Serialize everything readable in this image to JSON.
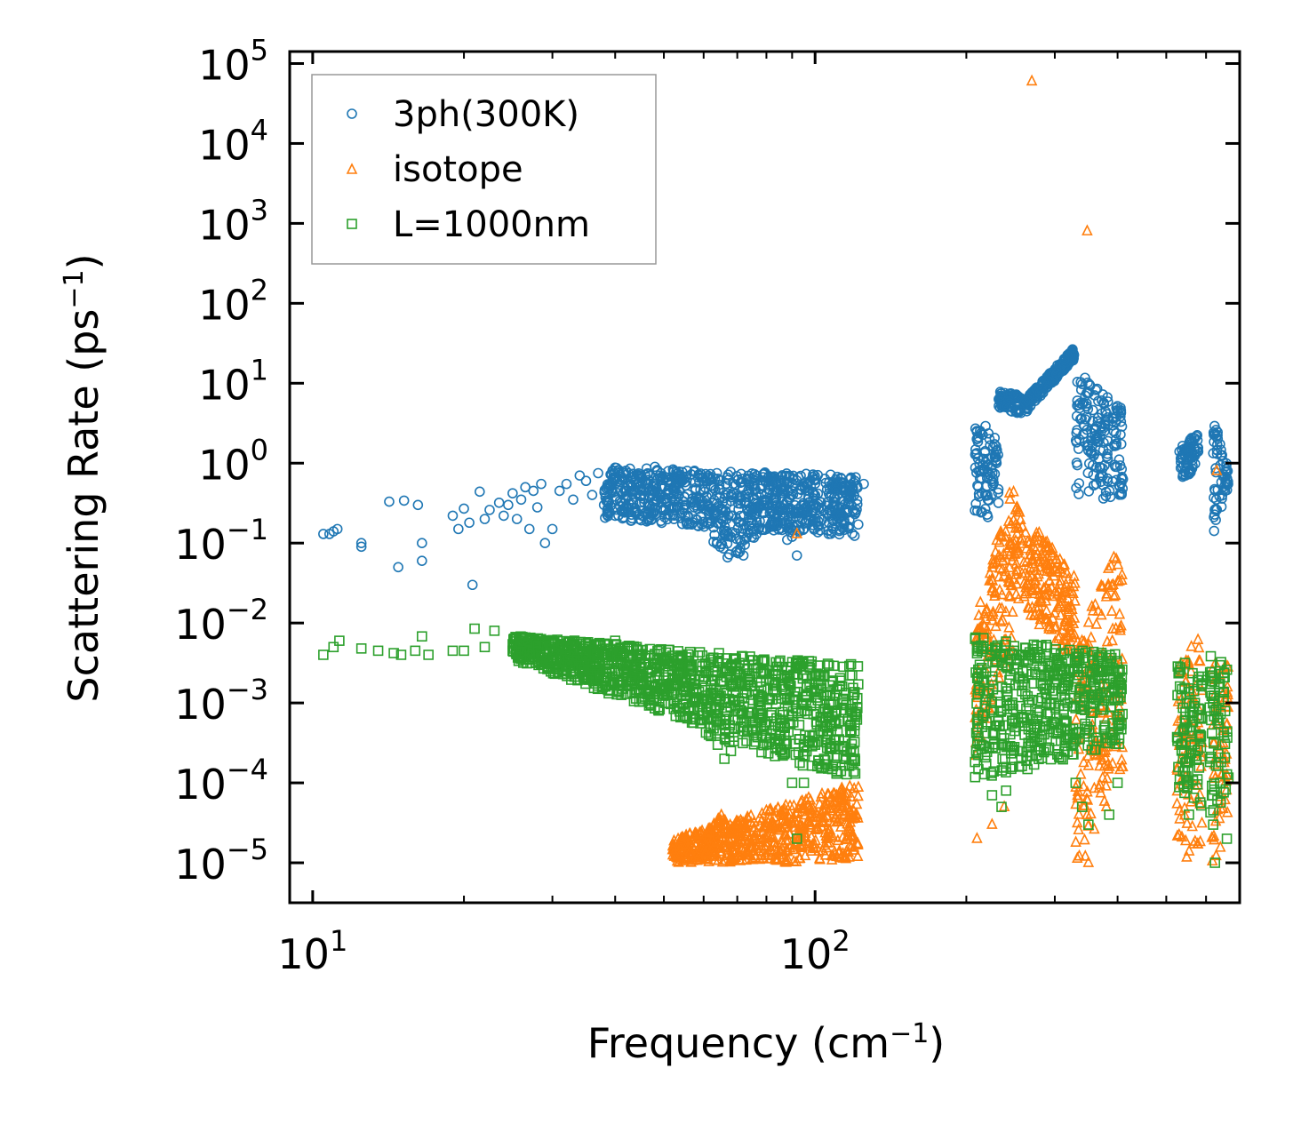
{
  "chart_data": {
    "type": "scatter",
    "xlabel": "Frequency (cm",
    "xlabel_sup": "−1",
    "xlabel_end": ")",
    "ylabel": "Scattering Rate (ps",
    "ylabel_sup": "−1",
    "ylabel_end": ")",
    "xscale": "log",
    "yscale": "log",
    "xlim": [
      9.0,
      700.0
    ],
    "ylim_exponents": [
      -5.5,
      5.15
    ],
    "x_ticks": [
      {
        "value": 10,
        "base": "10",
        "exp": "1"
      },
      {
        "value": 100,
        "base": "10",
        "exp": "2"
      }
    ],
    "y_ticks": [
      {
        "exp_value": 5,
        "base": "10",
        "exp": "5"
      },
      {
        "exp_value": 4,
        "base": "10",
        "exp": "4"
      },
      {
        "exp_value": 3,
        "base": "10",
        "exp": "3"
      },
      {
        "exp_value": 2,
        "base": "10",
        "exp": "2"
      },
      {
        "exp_value": 1,
        "base": "10",
        "exp": "1"
      },
      {
        "exp_value": 0,
        "base": "10",
        "exp": "0"
      },
      {
        "exp_value": -1,
        "base": "10",
        "exp": "−1"
      },
      {
        "exp_value": -2,
        "base": "10",
        "exp": "−2"
      },
      {
        "exp_value": -3,
        "base": "10",
        "exp": "−3"
      },
      {
        "exp_value": -4,
        "base": "10",
        "exp": "−4"
      },
      {
        "exp_value": -5,
        "base": "10",
        "exp": "−5"
      }
    ],
    "legend_placement": "top-left",
    "series": [
      {
        "name": "3ph(300K)",
        "marker": "circle",
        "color": "#1f77b4",
        "points": [
          [
            10.5,
            0.13
          ],
          [
            10.8,
            0.13
          ],
          [
            11,
            0.14
          ],
          [
            11.2,
            0.15
          ],
          [
            12.5,
            0.1
          ],
          [
            12.5,
            0.09
          ],
          [
            14.2,
            0.33
          ],
          [
            14.8,
            0.05
          ],
          [
            15.2,
            0.34
          ],
          [
            16.2,
            0.3
          ],
          [
            16.5,
            0.06
          ],
          [
            16.5,
            0.1
          ],
          [
            19,
            0.22
          ],
          [
            19.5,
            0.15
          ],
          [
            20,
            0.27
          ],
          [
            20.5,
            0.18
          ],
          [
            20.8,
            0.03
          ],
          [
            21.5,
            0.44
          ],
          [
            22,
            0.2
          ],
          [
            22.5,
            0.26
          ],
          [
            23.5,
            0.32
          ],
          [
            24,
            0.22
          ],
          [
            24.5,
            0.3
          ],
          [
            25,
            0.42
          ],
          [
            25.5,
            0.2
          ],
          [
            26,
            0.35
          ],
          [
            26.5,
            0.5
          ],
          [
            27,
            0.15
          ],
          [
            27.5,
            0.45
          ],
          [
            28,
            0.28
          ],
          [
            28.5,
            0.55
          ],
          [
            29,
            0.1
          ],
          [
            30,
            0.15
          ],
          [
            31,
            0.45
          ],
          [
            32,
            0.55
          ],
          [
            33,
            0.35
          ],
          [
            34,
            0.7
          ],
          [
            35,
            0.6
          ],
          [
            36,
            0.4
          ],
          [
            37,
            0.75
          ],
          [
            38,
            0.3
          ],
          [
            39,
            0.55
          ],
          [
            40,
            0.8
          ],
          [
            41,
            0.45
          ],
          [
            42,
            0.35
          ],
          [
            44,
            0.25
          ],
          [
            45,
            0.4
          ],
          [
            48,
            0.9
          ],
          [
            50,
            0.35
          ],
          [
            55,
            0.3
          ],
          [
            60,
            0.6
          ],
          [
            65,
            0.2
          ],
          [
            68,
            0.12
          ],
          [
            70,
            0.08
          ],
          [
            72,
            0.07
          ],
          [
            75,
            0.15
          ],
          [
            80,
            0.3
          ],
          [
            85,
            0.25
          ],
          [
            88,
            0.11
          ],
          [
            90,
            0.12
          ],
          [
            92,
            0.07
          ],
          [
            95,
            0.3
          ],
          [
            100,
            0.4
          ],
          [
            110,
            0.45
          ],
          [
            120,
            0.6
          ],
          [
            125,
            0.55
          ]
        ],
        "bands": [
          {
            "x": [
              38,
              122
            ],
            "y_lo": [
              0.2,
              0.12
            ],
            "y_hi": [
              0.9,
              0.7
            ],
            "dip": [
              68,
              0.06
            ]
          },
          {
            "x": [
              208,
              232
            ],
            "y_lo": [
              0.15,
              0.25
            ],
            "y_hi": [
              4.0,
              2.0
            ]
          },
          {
            "x": [
              232,
              258
            ],
            "y_lo": [
              5.0,
              4.0
            ],
            "y_hi": [
              8.0,
              7.0
            ]
          },
          {
            "x": [
              260,
              328
            ],
            "y_lo": [
              4.0,
              20.0
            ],
            "y_hi": [
              6.0,
              28.0
            ]
          },
          {
            "x": [
              330,
              410
            ],
            "y_lo": [
              0.3,
              0.4
            ],
            "y_hi": [
              15.0,
              5.0
            ]
          },
          {
            "x": [
              530,
              580
            ],
            "y_lo": [
              0.5,
              1.0
            ],
            "y_hi": [
              1.5,
              2.5
            ]
          },
          {
            "x": [
              620,
              665
            ],
            "y_lo": [
              0.12,
              0.5
            ],
            "y_hi": [
              4.0,
              0.8
            ]
          }
        ]
      },
      {
        "name": "isotope",
        "marker": "triangle",
        "color": "#ff7f0e",
        "points": [
          [
            92,
            0.13
          ],
          [
            270,
            60000
          ],
          [
            348,
            800
          ],
          [
            630,
            0.8
          ],
          [
            210,
            2e-05
          ],
          [
            225,
            3e-05
          ],
          [
            238,
            5e-05
          ],
          [
            335,
            4e-05
          ],
          [
            345,
            1.2e-05
          ],
          [
            350,
            1e-05
          ],
          [
            380,
            5e-05
          ],
          [
            405,
            0.008
          ]
        ],
        "bands": [
          {
            "x": [
              52,
              122
            ],
            "y_lo": [
              1e-05,
              1e-05
            ],
            "y_hi": [
              2e-05,
              0.0001
            ],
            "peak": [
              65,
              4e-05
            ]
          },
          {
            "x": [
              208,
              250
            ],
            "y_lo": [
              0.0002,
              0.005
            ],
            "y_hi": [
              0.01,
              0.8
            ]
          },
          {
            "x": [
              250,
              330
            ],
            "y_lo": [
              0.02,
              0.003
            ],
            "y_hi": [
              0.3,
              0.04
            ]
          },
          {
            "x": [
              330,
              410
            ],
            "y_lo": [
              1e-05,
              0.0001
            ],
            "y_hi": [
              0.005,
              0.15
            ]
          },
          {
            "x": [
              525,
              590
            ],
            "y_lo": [
              1e-05,
              1e-05
            ],
            "y_hi": [
              0.003,
              0.008
            ]
          },
          {
            "x": [
              612,
              665
            ],
            "y_lo": [
              1e-05,
              1e-05
            ],
            "y_hi": [
              0.004,
              0.003
            ]
          }
        ]
      },
      {
        "name": "L=1000nm",
        "marker": "square",
        "color": "#2ca02c",
        "points": [
          [
            10.5,
            0.004
          ],
          [
            11,
            0.005
          ],
          [
            11.3,
            0.006
          ],
          [
            12.5,
            0.0048
          ],
          [
            13.5,
            0.0045
          ],
          [
            14.5,
            0.0042
          ],
          [
            15,
            0.004
          ],
          [
            16,
            0.0045
          ],
          [
            16.5,
            0.0068
          ],
          [
            17,
            0.004
          ],
          [
            19,
            0.0045
          ],
          [
            20,
            0.0045
          ],
          [
            21,
            0.0085
          ],
          [
            22,
            0.005
          ],
          [
            23,
            0.008
          ],
          [
            25,
            0.0045
          ],
          [
            30,
            0.005
          ],
          [
            35,
            0.004
          ],
          [
            40,
            0.006
          ],
          [
            60,
            0.0007
          ],
          [
            62,
            0.0005
          ],
          [
            64,
            0.0003
          ],
          [
            66,
            0.0002
          ],
          [
            68,
            0.00025
          ],
          [
            78,
            0.0005
          ],
          [
            85,
            0.0004
          ],
          [
            90,
            0.0001
          ],
          [
            92,
            2e-05
          ],
          [
            95,
            0.0001
          ],
          [
            100,
            0.0003
          ],
          [
            120,
            0.0002
          ],
          [
            215,
            0.0005
          ],
          [
            225,
            7e-05
          ],
          [
            235,
            5e-05
          ],
          [
            240,
            8e-05
          ],
          [
            330,
            0.0001
          ],
          [
            340,
            5e-05
          ],
          [
            350,
            3e-05
          ],
          [
            385,
            4e-05
          ],
          [
            395,
            0.00035
          ],
          [
            400,
            0.0001
          ],
          [
            540,
            0.0002
          ],
          [
            555,
            4e-05
          ],
          [
            570,
            0.001
          ],
          [
            620,
            3e-05
          ],
          [
            625,
            1e-05
          ],
          [
            640,
            0.0001
          ],
          [
            660,
            2e-05
          ]
        ],
        "bands": [
          {
            "x": [
              25,
              122
            ],
            "y_lo": [
              0.0035,
              0.0001
            ],
            "y_hi": [
              0.007,
              0.003
            ],
            "drop": [
              60,
              0.0004
            ]
          },
          {
            "x": [
              208,
              410
            ],
            "y_lo": [
              0.0001,
              0.0003
            ],
            "y_hi": [
              0.007,
              0.004
            ]
          },
          {
            "x": [
              525,
              590
            ],
            "y_lo": [
              8e-05,
              5e-05
            ],
            "y_hi": [
              0.004,
              0.003
            ]
          },
          {
            "x": [
              610,
              665
            ],
            "y_lo": [
              2e-05,
              5e-05
            ],
            "y_hi": [
              0.005,
              0.004
            ]
          }
        ]
      }
    ]
  }
}
